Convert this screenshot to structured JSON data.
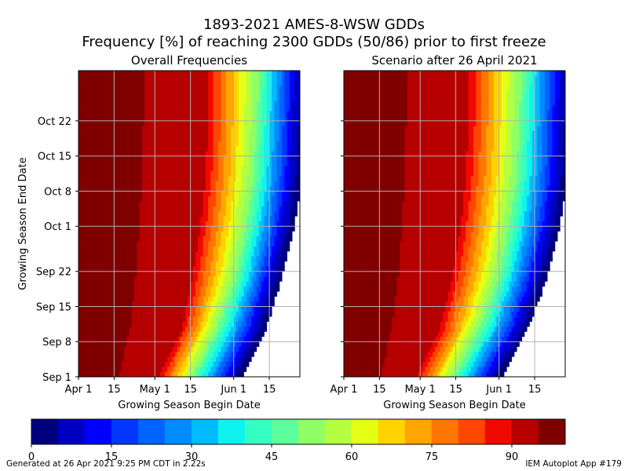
{
  "header": {
    "title_line1": "1893-2021 AMES-8-WSW GDDs",
    "title_line2": "Frequency [%] of reaching 2300 GDDs (50/86) prior to first freeze"
  },
  "footer": {
    "left": "Generated at 26 Apr 2021 9:25 PM CDT in 2.22s",
    "right": "IEM Autoplot App #179"
  },
  "chart_data": [
    {
      "type": "heatmap",
      "title": "Overall Frequencies",
      "xlabel": "Growing Season Begin Date",
      "ylabel": "Growing Season End Date",
      "x_ticks": [
        "Apr 1",
        "15",
        "May 1",
        "15",
        "Jun 1",
        "15"
      ],
      "x_tick_values": [
        0,
        14,
        30,
        44,
        61,
        75
      ],
      "y_ticks": [
        "Sep 1",
        "Sep 8",
        "Sep 15",
        "Sep 22",
        "Oct 1",
        "Oct 8",
        "Oct 15",
        "Oct 22"
      ],
      "y_tick_values": [
        0,
        7,
        14,
        21,
        30,
        37,
        44,
        51
      ],
      "x_range": [
        0,
        87
      ],
      "y_range": [
        0,
        61
      ],
      "grid": true,
      "isoline_begin_day_at_end_day": {
        "end_day": [
          0,
          10,
          20,
          30,
          40,
          50,
          61
        ],
        "p90_begin_day": [
          32,
          41,
          45,
          48,
          50,
          51,
          51
        ],
        "p50_begin_day": [
          45,
          55,
          62,
          66,
          69,
          70,
          71
        ],
        "p10_begin_day": [
          59,
          69,
          75,
          80,
          83,
          84,
          85
        ]
      }
    },
    {
      "type": "heatmap",
      "title": "Scenario after 26 April 2021",
      "xlabel": "Growing Season Begin Date",
      "x_ticks": [
        "Apr 1",
        "15",
        "May 1",
        "15",
        "Jun 1",
        "15"
      ],
      "x_tick_values": [
        0,
        14,
        30,
        44,
        61,
        75
      ],
      "y_ticks": [
        "Sep 1",
        "Sep 8",
        "Sep 15",
        "Sep 22",
        "Oct 1",
        "Oct 8",
        "Oct 15",
        "Oct 22"
      ],
      "y_tick_values": [
        0,
        7,
        14,
        21,
        30,
        37,
        44,
        51
      ],
      "x_range": [
        0,
        87
      ],
      "y_range": [
        0,
        61
      ],
      "grid": true,
      "isoline_begin_day_at_end_day": {
        "end_day": [
          0,
          10,
          20,
          30,
          40,
          50,
          61
        ],
        "p90_begin_day": [
          29,
          38,
          43,
          46,
          48,
          49,
          49
        ],
        "p50_begin_day": [
          43,
          54,
          61,
          65,
          68,
          69,
          70
        ],
        "p10_begin_day": [
          57,
          68,
          75,
          80,
          83,
          84,
          85
        ]
      }
    }
  ],
  "colorbar": {
    "ticks": [
      "0",
      "15",
      "30",
      "45",
      "60",
      "75",
      "90"
    ],
    "tick_values": [
      0,
      15,
      30,
      45,
      60,
      75,
      90
    ],
    "range": [
      0,
      100
    ],
    "colors": [
      "#00007f",
      "#0000c3",
      "#0000ff",
      "#0036ff",
      "#0064ff",
      "#008cff",
      "#00bcff",
      "#0ff3ee",
      "#34ffc2",
      "#5aff9c",
      "#90ff66",
      "#b6ff40",
      "#e4ff13",
      "#ffd300",
      "#ffa400",
      "#ff7700",
      "#ff4600",
      "#f10800",
      "#b60000",
      "#800000"
    ]
  }
}
